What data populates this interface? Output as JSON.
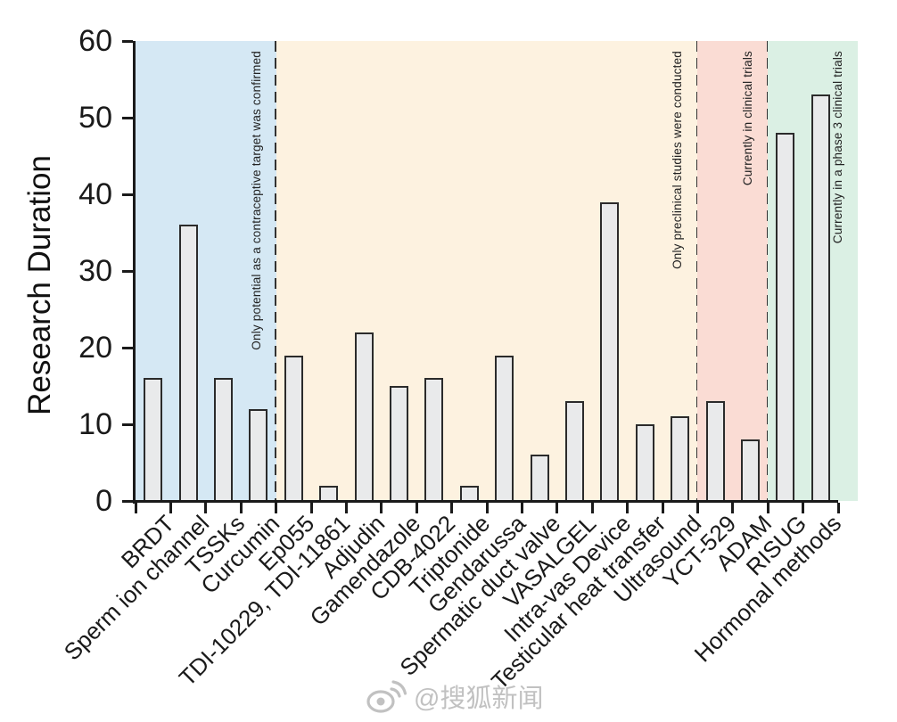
{
  "chart_data": {
    "type": "bar",
    "title": "",
    "xlabel": "",
    "ylabel": "Research Duration",
    "ylim": [
      0,
      60
    ],
    "yticks": [
      0,
      10,
      20,
      30,
      40,
      50,
      60
    ],
    "grid": false,
    "legend": "none",
    "bar_fill_color": "#e9eaeb",
    "bar_border_color": "#2b2b2b",
    "categories": [
      "BRDT",
      "Sperm ion channel",
      "TSSKs",
      "Curcumin",
      "Ep055",
      "TDI-10229, TDI-11861",
      "Adjudin",
      "Gamendazole",
      "CDB-4022",
      "Triptonide",
      "Gendarussa",
      "Spermatic duct valve",
      "VASALGEL",
      "Intra-vas Device",
      "Testicular heat transfer",
      "Ultrasound",
      "YCT-529",
      "ADAM",
      "RISUG",
      "Hormonal methods"
    ],
    "values": [
      16,
      36,
      16,
      12,
      19,
      2,
      22,
      15,
      16,
      2,
      19,
      6,
      13,
      39,
      10,
      11,
      13,
      8,
      48,
      53
    ],
    "regions": [
      {
        "label": "Only potential as a contraceptive target was confirmed",
        "start_index": 0,
        "end_index": 3,
        "color": "#d5e8f4"
      },
      {
        "label": "Only preclinical studies were conducted",
        "start_index": 4,
        "end_index": 15,
        "color": "#fdf2e0"
      },
      {
        "label": "Currently in clinical trials",
        "start_index": 16,
        "end_index": 17,
        "color": "#fadcd4"
      },
      {
        "label": "Currently in a phase 3 clinical trials",
        "start_index": 18,
        "end_index": 19,
        "color": "#dbf0e4"
      }
    ],
    "region_separator_style": "dashed"
  },
  "watermark": {
    "text": "@搜狐新闻",
    "icon": "weibo-icon"
  }
}
